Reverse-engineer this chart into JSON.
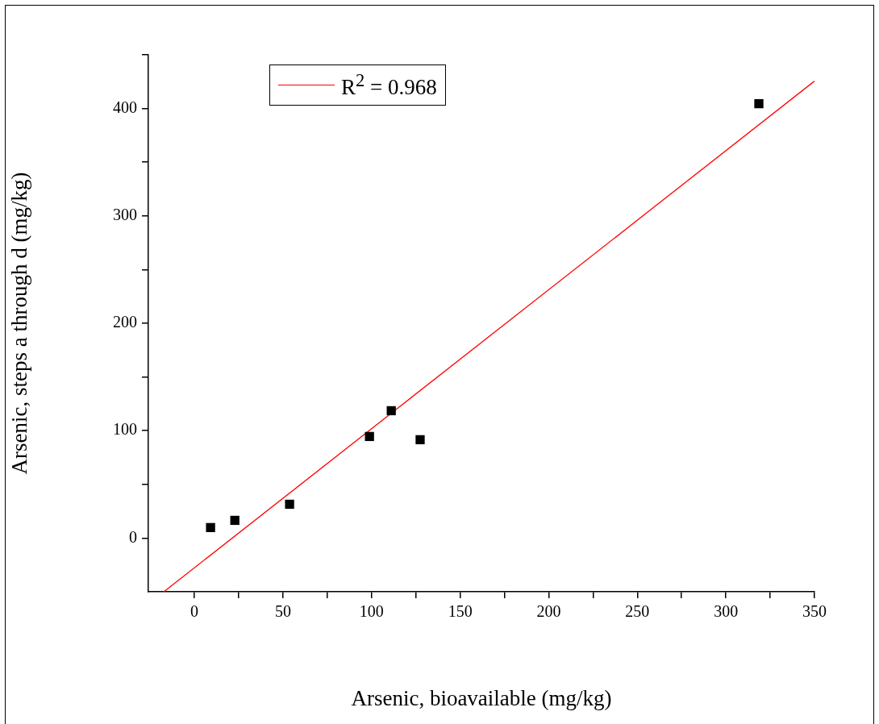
{
  "chart_data": {
    "type": "scatter",
    "xlabel": "Arsenic, bioavailable (mg/kg)",
    "ylabel": "Arsenic, steps a through d (mg/kg)",
    "xlim": [
      -26,
      350
    ],
    "ylim": [
      -50,
      450
    ],
    "xticks": [
      0,
      {
        "value": 25,
        "label": null
      },
      50,
      {
        "value": 75,
        "label": null
      },
      100,
      {
        "value": 125,
        "label": null
      },
      150,
      {
        "value": 175,
        "label": null
      },
      200,
      {
        "value": 225,
        "label": null
      },
      250,
      {
        "value": 275,
        "label": null
      },
      300,
      {
        "value": 325,
        "label": null
      },
      350
    ],
    "yticks": [
      0,
      {
        "value": 50,
        "label": null
      },
      100,
      {
        "value": 150,
        "label": null
      },
      200,
      {
        "value": 250,
        "label": null
      },
      300,
      {
        "value": 350,
        "label": null
      },
      400,
      {
        "value": 450,
        "label": null
      }
    ],
    "legend": "top left",
    "marker": "square",
    "series": [
      {
        "color": "#000000",
        "x": [
          9.1,
          22.8,
          53.7,
          98.8,
          111.1,
          127.4,
          318.6
        ],
        "values": [
          9.8,
          16.5,
          31.5,
          94.6,
          118.6,
          91.6,
          404.5
        ]
      },
      {
        "type": "line",
        "name": "R$^{2}$ = 0.968",
        "color": "#ff0000",
        "marker": "none",
        "x": [
          -17.3,
          350
        ],
        "values": [
          -50,
          425.5
        ]
      }
    ]
  }
}
